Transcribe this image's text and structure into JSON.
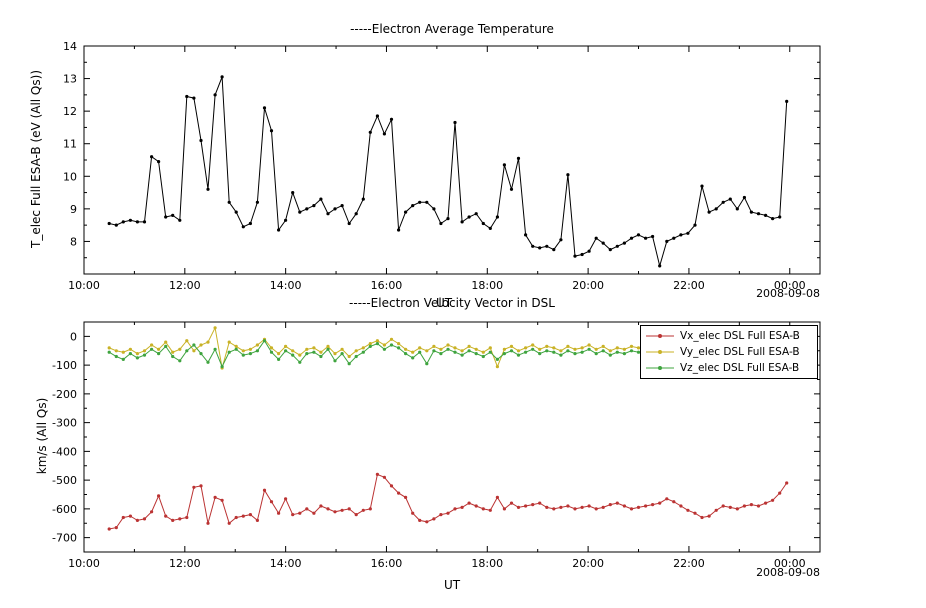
{
  "page": {
    "background": "#ffffff",
    "date_label": "2008-09-08"
  },
  "chart_data": [
    {
      "id": "electron-average-temperature",
      "type": "line",
      "title": "-----Electron Average Temperature",
      "ylabel": "T_elec Full ESA-B (eV (All Qs))",
      "xlabel": "UT",
      "date_annotation": "2008-09-08",
      "grid": false,
      "x_range": [
        10,
        24.6
      ],
      "y_range": [
        7,
        14
      ],
      "x_ticks": [
        {
          "value": 10,
          "label": "10:00"
        },
        {
          "value": 12,
          "label": "12:00"
        },
        {
          "value": 14,
          "label": "14:00"
        },
        {
          "value": 16,
          "label": "16:00"
        },
        {
          "value": 18,
          "label": "18:00"
        },
        {
          "value": 20,
          "label": "20:00"
        },
        {
          "value": 22,
          "label": "22:00"
        },
        {
          "value": 24,
          "label": "00:00"
        }
      ],
      "x_minor": [
        11,
        13,
        15,
        17,
        19,
        21,
        23
      ],
      "y_ticks": [
        {
          "value": 8,
          "label": "8"
        },
        {
          "value": 9,
          "label": "9"
        },
        {
          "value": 10,
          "label": "10"
        },
        {
          "value": 11,
          "label": "11"
        },
        {
          "value": 12,
          "label": "12"
        },
        {
          "value": 13,
          "label": "13"
        },
        {
          "value": 14,
          "label": "14"
        }
      ],
      "y_minor": [
        7.5,
        8.5,
        9.5,
        10.5,
        11.5,
        12.5,
        13.5
      ],
      "x_hours": [
        10.5,
        10.64,
        10.78,
        10.92,
        11.06,
        11.2,
        11.34,
        11.48,
        11.62,
        11.76,
        11.9,
        12.04,
        12.18,
        12.32,
        12.46,
        12.6,
        12.74,
        12.88,
        13.02,
        13.16,
        13.3,
        13.44,
        13.58,
        13.72,
        13.86,
        14.0,
        14.14,
        14.28,
        14.42,
        14.56,
        14.7,
        14.84,
        14.98,
        15.12,
        15.26,
        15.4,
        15.54,
        15.68,
        15.82,
        15.96,
        16.1,
        16.24,
        16.38,
        16.52,
        16.66,
        16.8,
        16.94,
        17.08,
        17.22,
        17.36,
        17.5,
        17.64,
        17.78,
        17.92,
        18.06,
        18.2,
        18.34,
        18.48,
        18.62,
        18.76,
        18.9,
        19.04,
        19.18,
        19.32,
        19.46,
        19.6,
        19.74,
        19.88,
        20.02,
        20.16,
        20.3,
        20.44,
        20.58,
        20.72,
        20.86,
        21.0,
        21.14,
        21.28,
        21.42,
        21.56,
        21.7,
        21.84,
        21.98,
        22.12,
        22.26,
        22.4,
        22.54,
        22.68,
        22.82,
        22.96,
        23.1,
        23.24,
        23.38,
        23.52,
        23.66,
        23.8,
        23.94
      ],
      "series": [
        {
          "name": "T_elec Full ESA-B",
          "color": "#000000",
          "values": [
            8.55,
            8.5,
            8.6,
            8.65,
            8.6,
            8.6,
            10.6,
            10.45,
            8.75,
            8.8,
            8.65,
            12.45,
            12.4,
            11.1,
            9.6,
            12.5,
            13.05,
            9.2,
            8.9,
            8.45,
            8.55,
            9.2,
            12.1,
            11.4,
            8.35,
            8.65,
            9.5,
            8.9,
            9.0,
            9.1,
            9.3,
            8.85,
            9.0,
            9.1,
            8.55,
            8.85,
            9.3,
            11.35,
            11.85,
            11.3,
            11.75,
            8.35,
            8.9,
            9.1,
            9.2,
            9.2,
            9.0,
            8.55,
            8.7,
            11.65,
            8.6,
            8.75,
            8.85,
            8.55,
            8.4,
            8.75,
            10.35,
            9.6,
            10.55,
            8.2,
            7.85,
            7.8,
            7.85,
            7.75,
            8.05,
            10.05,
            7.55,
            7.6,
            7.7,
            8.1,
            7.95,
            7.75,
            7.85,
            7.95,
            8.1,
            8.2,
            8.1,
            8.15,
            7.25,
            8.0,
            8.1,
            8.2,
            8.25,
            8.5,
            9.7,
            8.9,
            9.0,
            9.2,
            9.3,
            9.0,
            9.35,
            8.9,
            8.85,
            8.8,
            8.7,
            8.75,
            12.3
          ]
        }
      ]
    },
    {
      "id": "electron-velocity-dsl",
      "type": "line",
      "title": "-----Electron Velocity Vector in DSL",
      "ylabel": "km/s (All Qs)",
      "xlabel": "UT",
      "date_annotation": "2008-09-08",
      "grid": false,
      "legend_position": "top-right",
      "x_range": [
        10,
        24.6
      ],
      "y_range": [
        -750,
        50
      ],
      "x_ticks": [
        {
          "value": 10,
          "label": "10:00"
        },
        {
          "value": 12,
          "label": "12:00"
        },
        {
          "value": 14,
          "label": "14:00"
        },
        {
          "value": 16,
          "label": "16:00"
        },
        {
          "value": 18,
          "label": "18:00"
        },
        {
          "value": 20,
          "label": "20:00"
        },
        {
          "value": 22,
          "label": "22:00"
        },
        {
          "value": 24,
          "label": "00:00"
        }
      ],
      "x_minor": [
        11,
        13,
        15,
        17,
        19,
        21,
        23
      ],
      "y_ticks": [
        {
          "value": 0,
          "label": "0"
        },
        {
          "value": -100,
          "label": "-100"
        },
        {
          "value": -200,
          "label": "-200"
        },
        {
          "value": -300,
          "label": "-300"
        },
        {
          "value": -400,
          "label": "-400"
        },
        {
          "value": -500,
          "label": "-500"
        },
        {
          "value": -600,
          "label": "-600"
        },
        {
          "value": -700,
          "label": "-700"
        }
      ],
      "y_minor": [
        -50,
        -150,
        -250,
        -350,
        -450,
        -550,
        -650
      ],
      "x_hours": [
        10.5,
        10.64,
        10.78,
        10.92,
        11.06,
        11.2,
        11.34,
        11.48,
        11.62,
        11.76,
        11.9,
        12.04,
        12.18,
        12.32,
        12.46,
        12.6,
        12.74,
        12.88,
        13.02,
        13.16,
        13.3,
        13.44,
        13.58,
        13.72,
        13.86,
        14.0,
        14.14,
        14.28,
        14.42,
        14.56,
        14.7,
        14.84,
        14.98,
        15.12,
        15.26,
        15.4,
        15.54,
        15.68,
        15.82,
        15.96,
        16.1,
        16.24,
        16.38,
        16.52,
        16.66,
        16.8,
        16.94,
        17.08,
        17.22,
        17.36,
        17.5,
        17.64,
        17.78,
        17.92,
        18.06,
        18.2,
        18.34,
        18.48,
        18.62,
        18.76,
        18.9,
        19.04,
        19.18,
        19.32,
        19.46,
        19.6,
        19.74,
        19.88,
        20.02,
        20.16,
        20.3,
        20.44,
        20.58,
        20.72,
        20.86,
        21.0,
        21.14,
        21.28,
        21.42,
        21.56,
        21.7,
        21.84,
        21.98,
        22.12,
        22.26,
        22.4,
        22.54,
        22.68,
        22.82,
        22.96,
        23.1,
        23.24,
        23.38,
        23.52,
        23.66,
        23.8,
        23.94
      ],
      "series": [
        {
          "name": "Vx_elec DSL Full ESA-B",
          "color": "#bb3333",
          "values": [
            -670,
            -665,
            -630,
            -625,
            -640,
            -635,
            -610,
            -555,
            -625,
            -640,
            -635,
            -630,
            -525,
            -520,
            -650,
            -560,
            -570,
            -650,
            -630,
            -625,
            -620,
            -640,
            -535,
            -575,
            -615,
            -565,
            -620,
            -615,
            -600,
            -615,
            -590,
            -600,
            -610,
            -605,
            -600,
            -620,
            -605,
            -600,
            -480,
            -490,
            -520,
            -545,
            -560,
            -615,
            -640,
            -645,
            -635,
            -620,
            -615,
            -600,
            -595,
            -580,
            -590,
            -600,
            -605,
            -560,
            -600,
            -580,
            -595,
            -590,
            -585,
            -580,
            -595,
            -600,
            -595,
            -590,
            -600,
            -595,
            -590,
            -600,
            -595,
            -585,
            -580,
            -590,
            -600,
            -595,
            -590,
            -585,
            -580,
            -565,
            -575,
            -590,
            -605,
            -615,
            -630,
            -625,
            -605,
            -590,
            -595,
            -600,
            -590,
            -585,
            -590,
            -580,
            -570,
            -545,
            -510
          ]
        },
        {
          "name": "Vy_elec DSL Full ESA-B",
          "color": "#c9b226",
          "values": [
            -40,
            -50,
            -55,
            -45,
            -60,
            -50,
            -30,
            -45,
            -20,
            -55,
            -45,
            -15,
            -50,
            -30,
            -20,
            30,
            -110,
            -20,
            -35,
            -50,
            -45,
            -30,
            -10,
            -40,
            -60,
            -35,
            -50,
            -65,
            -45,
            -40,
            -55,
            -35,
            -60,
            -45,
            -70,
            -50,
            -40,
            -25,
            -15,
            -30,
            -10,
            -25,
            -45,
            -55,
            -40,
            -50,
            -35,
            -45,
            -30,
            -40,
            -50,
            -35,
            -45,
            -55,
            -40,
            -105,
            -45,
            -35,
            -50,
            -40,
            -30,
            -45,
            -35,
            -40,
            -50,
            -35,
            -45,
            -40,
            -30,
            -45,
            -35,
            -50,
            -40,
            -45,
            -35,
            -40,
            -50,
            -35,
            -45,
            -40,
            -30,
            -40,
            -35,
            -45,
            -40,
            -50,
            -35,
            -45,
            -30,
            -40,
            -45,
            -35,
            -40,
            -30,
            -35,
            -30,
            -25
          ]
        },
        {
          "name": "Vz_elec DSL Full ESA-B",
          "color": "#3fa43f",
          "values": [
            -55,
            -70,
            -80,
            -60,
            -75,
            -65,
            -45,
            -60,
            -35,
            -70,
            -85,
            -50,
            -30,
            -60,
            -90,
            -45,
            -105,
            -55,
            -45,
            -65,
            -60,
            -50,
            -15,
            -55,
            -80,
            -50,
            -65,
            -90,
            -60,
            -55,
            -70,
            -45,
            -85,
            -60,
            -95,
            -70,
            -55,
            -35,
            -25,
            -45,
            -30,
            -40,
            -60,
            -75,
            -55,
            -95,
            -50,
            -60,
            -45,
            -55,
            -65,
            -50,
            -60,
            -70,
            -55,
            -80,
            -60,
            -50,
            -65,
            -55,
            -45,
            -60,
            -50,
            -55,
            -65,
            -50,
            -60,
            -55,
            -45,
            -60,
            -50,
            -65,
            -55,
            -60,
            -50,
            -55,
            -65,
            -50,
            -60,
            -55,
            -45,
            -55,
            -50,
            -60,
            -55,
            -65,
            -50,
            -60,
            -45,
            -55,
            -60,
            -50,
            -55,
            -45,
            -50,
            -45,
            -40
          ]
        }
      ]
    }
  ]
}
